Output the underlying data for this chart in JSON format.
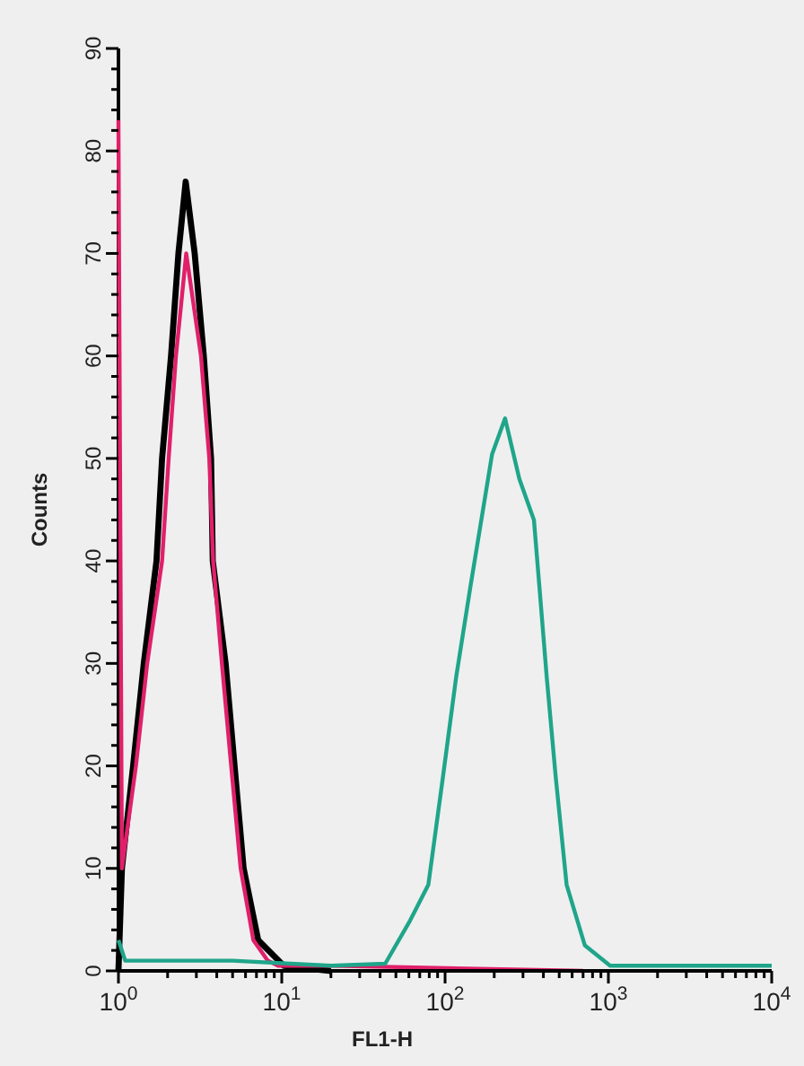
{
  "chart_data": {
    "type": "line",
    "xlabel": "FL1-H",
    "ylabel": "Counts",
    "log": "x",
    "xlim": [
      1,
      10000
    ],
    "ylim": [
      0,
      90
    ],
    "xticks": [
      {
        "value": 1,
        "label": "10$^{0}$"
      },
      {
        "value": 2,
        "label": null
      },
      {
        "value": 3,
        "label": null
      },
      {
        "value": 4,
        "label": null
      },
      {
        "value": 5,
        "label": null
      },
      {
        "value": 6,
        "label": null
      },
      {
        "value": 7,
        "label": null
      },
      {
        "value": 8,
        "label": null
      },
      {
        "value": 9,
        "label": null
      },
      {
        "value": 10,
        "label": "10$^{1}$"
      },
      {
        "value": 20,
        "label": null
      },
      {
        "value": 30,
        "label": null
      },
      {
        "value": 40,
        "label": null
      },
      {
        "value": 50,
        "label": null
      },
      {
        "value": 60,
        "label": null
      },
      {
        "value": 70,
        "label": null
      },
      {
        "value": 80,
        "label": null
      },
      {
        "value": 90,
        "label": null
      },
      {
        "value": 100,
        "label": "10$^{2}$"
      },
      {
        "value": 200,
        "label": null
      },
      {
        "value": 300,
        "label": null
      },
      {
        "value": 400,
        "label": null
      },
      {
        "value": 500,
        "label": null
      },
      {
        "value": 600,
        "label": null
      },
      {
        "value": 700,
        "label": null
      },
      {
        "value": 800,
        "label": null
      },
      {
        "value": 900,
        "label": null
      },
      {
        "value": 1000,
        "label": "10$^{3}$"
      },
      {
        "value": 2000,
        "label": null
      },
      {
        "value": 3000,
        "label": null
      },
      {
        "value": 4000,
        "label": null
      },
      {
        "value": 5000,
        "label": null
      },
      {
        "value": 6000,
        "label": null
      },
      {
        "value": 7000,
        "label": null
      },
      {
        "value": 8000,
        "label": null
      },
      {
        "value": 9000,
        "label": null
      },
      {
        "value": 10000,
        "label": "10$^{4}$"
      }
    ],
    "yticks": [
      0,
      {
        "value": 2,
        "label": null
      },
      {
        "value": 4,
        "label": null
      },
      {
        "value": 6,
        "label": null
      },
      {
        "value": 8,
        "label": null
      },
      10,
      {
        "value": 12,
        "label": null
      },
      {
        "value": 14,
        "label": null
      },
      {
        "value": 16,
        "label": null
      },
      {
        "value": 18,
        "label": null
      },
      20,
      {
        "value": 22,
        "label": null
      },
      {
        "value": 24,
        "label": null
      },
      {
        "value": 26,
        "label": null
      },
      {
        "value": 28,
        "label": null
      },
      30,
      {
        "value": 32,
        "label": null
      },
      {
        "value": 34,
        "label": null
      },
      {
        "value": 36,
        "label": null
      },
      {
        "value": 38,
        "label": null
      },
      40,
      {
        "value": 42,
        "label": null
      },
      {
        "value": 44,
        "label": null
      },
      {
        "value": 46,
        "label": null
      },
      {
        "value": 48,
        "label": null
      },
      50,
      {
        "value": 52,
        "label": null
      },
      {
        "value": 54,
        "label": null
      },
      {
        "value": 56,
        "label": null
      },
      {
        "value": 58,
        "label": null
      },
      60,
      {
        "value": 62,
        "label": null
      },
      {
        "value": 64,
        "label": null
      },
      {
        "value": 66,
        "label": null
      },
      {
        "value": 68,
        "label": null
      },
      70,
      {
        "value": 72,
        "label": null
      },
      {
        "value": 74,
        "label": null
      },
      {
        "value": 76,
        "label": null
      },
      {
        "value": 78,
        "label": null
      },
      80,
      {
        "value": 82,
        "label": null
      },
      {
        "value": 84,
        "label": null
      },
      {
        "value": 86,
        "label": null
      },
      {
        "value": 88,
        "label": null
      },
      90
    ],
    "grid": false,
    "line_style": "solid",
    "series": [
      {
        "color": "#000000",
        "x": [
          1,
          1.05,
          1.23,
          1.43,
          1.71,
          1.85,
          2.1,
          2.33,
          2.58,
          2.93,
          3.33,
          3.69,
          3.78,
          4.53,
          5.14,
          5.84,
          7.17,
          10.3,
          20
        ],
        "values": [
          0,
          10,
          20,
          30,
          40,
          50,
          60,
          70,
          77,
          70,
          60,
          50,
          40,
          30,
          20,
          10,
          3,
          0.5,
          0
        ]
      },
      {
        "color": "#e0206a",
        "x": [
          1,
          1.05,
          1.28,
          1.5,
          1.85,
          2.03,
          2.25,
          2.6,
          3.2,
          3.6,
          3.8,
          4.3,
          4.9,
          5.6,
          6.7,
          8.2,
          9.5,
          20,
          700
        ],
        "values": [
          83,
          10,
          20,
          30,
          40,
          50,
          60,
          70,
          60,
          50,
          40,
          30,
          20,
          10,
          3,
          1,
          0.5,
          0.5,
          0
        ]
      },
      {
        "color": "#1fa58a",
        "x": [
          1,
          1.1,
          5,
          20,
          43,
          61,
          79,
          97,
          117,
          143,
          194,
          233,
          285,
          350,
          378,
          419,
          476,
          555,
          717,
          1025,
          10000
        ],
        "values": [
          3,
          1,
          1,
          0.5,
          0.7,
          4.9,
          8.4,
          18.9,
          28.7,
          37.5,
          50.4,
          53.9,
          48,
          44,
          37.5,
          28.7,
          18.9,
          8.4,
          2.5,
          0.5,
          0.5
        ]
      }
    ]
  }
}
